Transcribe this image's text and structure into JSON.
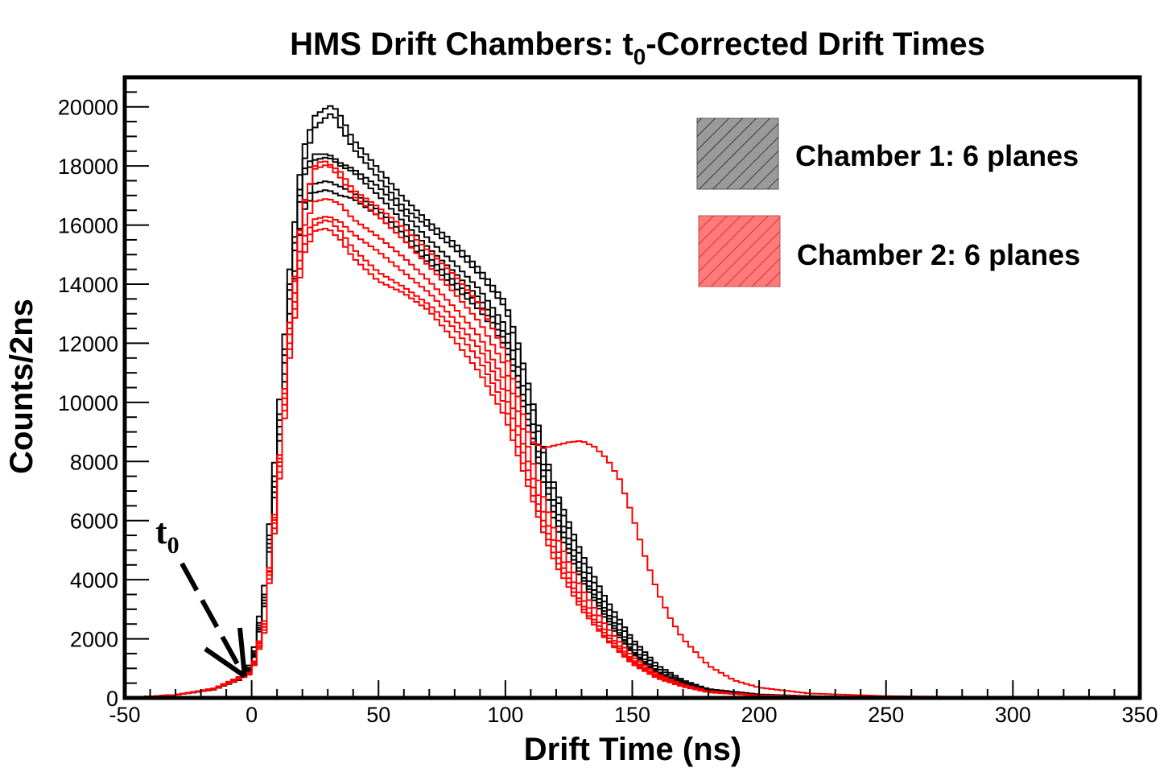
{
  "chart_data": {
    "type": "line",
    "title_main": "HMS Drift Chambers: t",
    "title_sub": "0",
    "title_rest": "-Corrected Drift Times",
    "xlabel": "Drift Time (ns)",
    "ylabel": "Counts/2ns",
    "xlim": [
      -50,
      350
    ],
    "ylim": [
      0,
      21000
    ],
    "xticks": [
      -50,
      0,
      50,
      100,
      150,
      200,
      250,
      300,
      350
    ],
    "yticks": [
      0,
      2000,
      4000,
      6000,
      8000,
      10000,
      12000,
      14000,
      16000,
      18000,
      20000
    ],
    "grid": false,
    "legend_position": "top-right",
    "legend": [
      {
        "label": "Chamber 1: 6 planes",
        "color": "#000000",
        "fill": "#9a9a9a"
      },
      {
        "label": "Chamber 2: 6 planes",
        "color": "#ff0000",
        "fill": "#ff7a7a"
      }
    ],
    "annotation": {
      "text": "t",
      "sub": "0",
      "points_to_x": -2,
      "points_to_y": 800
    },
    "series": [
      {
        "group": "Chamber 1",
        "color": "#000000",
        "x": [
          -50,
          -30,
          -15,
          -5,
          0,
          5,
          10,
          15,
          20,
          25,
          30,
          32,
          35,
          40,
          50,
          60,
          70,
          80,
          90,
          100,
          105,
          110,
          115,
          120,
          130,
          140,
          150,
          160,
          170,
          180,
          200,
          220,
          250,
          300,
          350
        ],
        "y": [
          0,
          100,
          300,
          700,
          1200,
          3800,
          9000,
          14500,
          18500,
          19700,
          20000,
          20050,
          19700,
          18900,
          17900,
          16900,
          16100,
          15400,
          14500,
          13400,
          12000,
          10300,
          8500,
          7000,
          4900,
          3300,
          2000,
          1100,
          600,
          300,
          120,
          60,
          30,
          10,
          0
        ]
      },
      {
        "group": "Chamber 1",
        "color": "#000000",
        "x": [
          -50,
          -30,
          -15,
          -5,
          0,
          5,
          10,
          15,
          20,
          25,
          30,
          32,
          35,
          40,
          50,
          60,
          70,
          80,
          90,
          100,
          105,
          110,
          115,
          120,
          130,
          140,
          150,
          160,
          170,
          180,
          200,
          220,
          250,
          300,
          350
        ],
        "y": [
          0,
          100,
          300,
          700,
          1100,
          3500,
          8500,
          14000,
          18000,
          19300,
          19700,
          19800,
          19300,
          18600,
          17600,
          16600,
          15900,
          15200,
          14300,
          13200,
          11800,
          10100,
          8300,
          6800,
          4700,
          3100,
          1900,
          1000,
          550,
          280,
          110,
          55,
          25,
          10,
          0
        ]
      },
      {
        "group": "Chamber 1",
        "color": "#000000",
        "x": [
          -50,
          -30,
          -15,
          -5,
          0,
          5,
          10,
          15,
          20,
          25,
          30,
          32,
          35,
          40,
          50,
          60,
          70,
          80,
          90,
          100,
          105,
          110,
          115,
          120,
          130,
          140,
          150,
          160,
          170,
          180,
          200,
          220,
          250,
          300,
          350
        ],
        "y": [
          0,
          100,
          300,
          650,
          1050,
          3400,
          8300,
          13800,
          17800,
          18400,
          18400,
          18300,
          18100,
          17900,
          17300,
          16400,
          15500,
          14700,
          13800,
          12600,
          11200,
          9600,
          7900,
          6400,
          4400,
          2900,
          1700,
          900,
          500,
          260,
          100,
          50,
          25,
          10,
          0
        ]
      },
      {
        "group": "Chamber 1",
        "color": "#000000",
        "x": [
          -50,
          -30,
          -15,
          -5,
          0,
          5,
          10,
          15,
          20,
          25,
          30,
          32,
          35,
          40,
          50,
          60,
          70,
          80,
          90,
          100,
          105,
          110,
          115,
          120,
          130,
          140,
          150,
          160,
          170,
          180,
          200,
          220,
          250,
          300,
          350
        ],
        "y": [
          0,
          100,
          300,
          650,
          1000,
          3300,
          8100,
          13500,
          17600,
          18200,
          18300,
          18200,
          18000,
          17800,
          17000,
          16100,
          15200,
          14400,
          13500,
          12300,
          10900,
          9300,
          7700,
          6200,
          4200,
          2800,
          1600,
          850,
          480,
          250,
          100,
          50,
          25,
          10,
          0
        ]
      },
      {
        "group": "Chamber 1",
        "color": "#000000",
        "x": [
          -50,
          -30,
          -15,
          -5,
          0,
          5,
          10,
          15,
          20,
          25,
          30,
          32,
          35,
          40,
          50,
          60,
          70,
          80,
          90,
          100,
          105,
          110,
          115,
          120,
          130,
          140,
          150,
          160,
          170,
          180,
          200,
          220,
          250,
          300,
          350
        ],
        "y": [
          0,
          100,
          280,
          620,
          980,
          3200,
          7900,
          13000,
          16600,
          17400,
          17500,
          17400,
          17300,
          17100,
          16500,
          15700,
          14900,
          14100,
          13300,
          12100,
          10700,
          9100,
          7500,
          6000,
          4100,
          2700,
          1550,
          820,
          460,
          240,
          95,
          48,
          24,
          10,
          0
        ]
      },
      {
        "group": "Chamber 1",
        "color": "#000000",
        "x": [
          -50,
          -30,
          -15,
          -5,
          0,
          5,
          10,
          15,
          20,
          25,
          30,
          32,
          35,
          40,
          50,
          60,
          70,
          80,
          90,
          100,
          105,
          110,
          115,
          120,
          130,
          140,
          150,
          160,
          170,
          180,
          200,
          220,
          250,
          300,
          350
        ],
        "y": [
          0,
          100,
          280,
          600,
          950,
          3100,
          7700,
          12700,
          16400,
          17100,
          17200,
          17100,
          17000,
          16900,
          16300,
          15500,
          14700,
          13900,
          13100,
          11900,
          10500,
          8900,
          7300,
          5800,
          4000,
          2600,
          1500,
          800,
          450,
          230,
          90,
          45,
          22,
          10,
          0
        ]
      },
      {
        "group": "Chamber 2",
        "color": "#ff0000",
        "x": [
          -50,
          -30,
          -15,
          -5,
          0,
          5,
          10,
          15,
          20,
          25,
          28,
          30,
          35,
          40,
          50,
          60,
          70,
          80,
          90,
          100,
          105,
          110,
          115,
          120,
          125,
          130,
          135,
          140,
          145,
          150,
          155,
          160,
          165,
          170,
          180,
          190,
          200,
          220,
          250,
          300,
          350
        ],
        "y": [
          0,
          100,
          320,
          700,
          900,
          2500,
          7000,
          12500,
          16500,
          18000,
          18200,
          18100,
          17800,
          17200,
          16600,
          15900,
          15100,
          14300,
          13300,
          11700,
          10200,
          8700,
          8450,
          8550,
          8650,
          8700,
          8500,
          8100,
          7400,
          6200,
          4800,
          3600,
          2700,
          2000,
          1100,
          600,
          350,
          150,
          60,
          20,
          0
        ]
      },
      {
        "group": "Chamber 2",
        "color": "#ff0000",
        "x": [
          -50,
          -30,
          -15,
          -5,
          0,
          5,
          10,
          15,
          20,
          25,
          30,
          35,
          40,
          50,
          60,
          70,
          80,
          90,
          100,
          105,
          110,
          115,
          120,
          130,
          140,
          150,
          160,
          170,
          180,
          200,
          220,
          250,
          300,
          350
        ],
        "y": [
          0,
          100,
          320,
          700,
          900,
          2600,
          7100,
          12700,
          16600,
          17900,
          18050,
          17600,
          17000,
          16300,
          15500,
          14600,
          13700,
          12700,
          11200,
          9700,
          8200,
          6800,
          5500,
          3700,
          2400,
          1400,
          800,
          450,
          230,
          90,
          45,
          22,
          10,
          0
        ]
      },
      {
        "group": "Chamber 2",
        "color": "#ff0000",
        "x": [
          -50,
          -30,
          -15,
          -5,
          0,
          5,
          10,
          15,
          20,
          25,
          30,
          35,
          40,
          50,
          60,
          70,
          80,
          90,
          100,
          105,
          110,
          115,
          120,
          130,
          140,
          150,
          160,
          170,
          180,
          200,
          220,
          250,
          300,
          350
        ],
        "y": [
          0,
          100,
          300,
          680,
          880,
          2500,
          6900,
          12300,
          15800,
          16800,
          16900,
          16700,
          16200,
          15600,
          14900,
          14100,
          13200,
          12200,
          10700,
          9200,
          7700,
          6300,
          5100,
          3400,
          2200,
          1300,
          740,
          420,
          210,
          85,
          42,
          20,
          10,
          0
        ]
      },
      {
        "group": "Chamber 2",
        "color": "#ff0000",
        "x": [
          -50,
          -30,
          -15,
          -5,
          0,
          5,
          10,
          15,
          20,
          25,
          30,
          35,
          40,
          50,
          60,
          70,
          80,
          90,
          100,
          105,
          110,
          115,
          120,
          130,
          140,
          150,
          160,
          170,
          180,
          200,
          220,
          250,
          300,
          350
        ],
        "y": [
          0,
          100,
          300,
          660,
          860,
          2400,
          6800,
          12000,
          15500,
          16200,
          16300,
          16100,
          15700,
          15100,
          14400,
          13700,
          12800,
          11800,
          10300,
          8900,
          7400,
          6000,
          4900,
          3200,
          2100,
          1250,
          700,
          400,
          200,
          80,
          40,
          20,
          10,
          0
        ]
      },
      {
        "group": "Chamber 2",
        "color": "#ff0000",
        "x": [
          -50,
          -30,
          -15,
          -5,
          0,
          5,
          10,
          15,
          20,
          25,
          30,
          35,
          40,
          50,
          60,
          70,
          80,
          90,
          100,
          105,
          110,
          115,
          120,
          130,
          140,
          150,
          160,
          170,
          180,
          200,
          220,
          250,
          300,
          350
        ],
        "y": [
          0,
          100,
          300,
          640,
          850,
          2300,
          6600,
          11800,
          15200,
          16000,
          16200,
          15800,
          15200,
          14400,
          13900,
          13300,
          12500,
          11400,
          9900,
          8500,
          7100,
          5800,
          4700,
          3100,
          2000,
          1200,
          680,
          390,
          195,
          78,
          38,
          19,
          10,
          0
        ]
      },
      {
        "group": "Chamber 2",
        "color": "#ff0000",
        "x": [
          -50,
          -30,
          -15,
          -5,
          0,
          5,
          10,
          15,
          20,
          25,
          30,
          35,
          40,
          50,
          60,
          70,
          80,
          90,
          100,
          105,
          110,
          115,
          120,
          130,
          140,
          150,
          160,
          170,
          180,
          200,
          220,
          250,
          300,
          350
        ],
        "y": [
          0,
          100,
          290,
          620,
          830,
          2200,
          6400,
          11500,
          14900,
          15800,
          15900,
          15500,
          14900,
          14100,
          13700,
          13100,
          12100,
          11000,
          9500,
          8200,
          6900,
          5600,
          4500,
          3000,
          1950,
          1150,
          660,
          380,
          190,
          76,
          37,
          18,
          10,
          0
        ]
      }
    ]
  }
}
